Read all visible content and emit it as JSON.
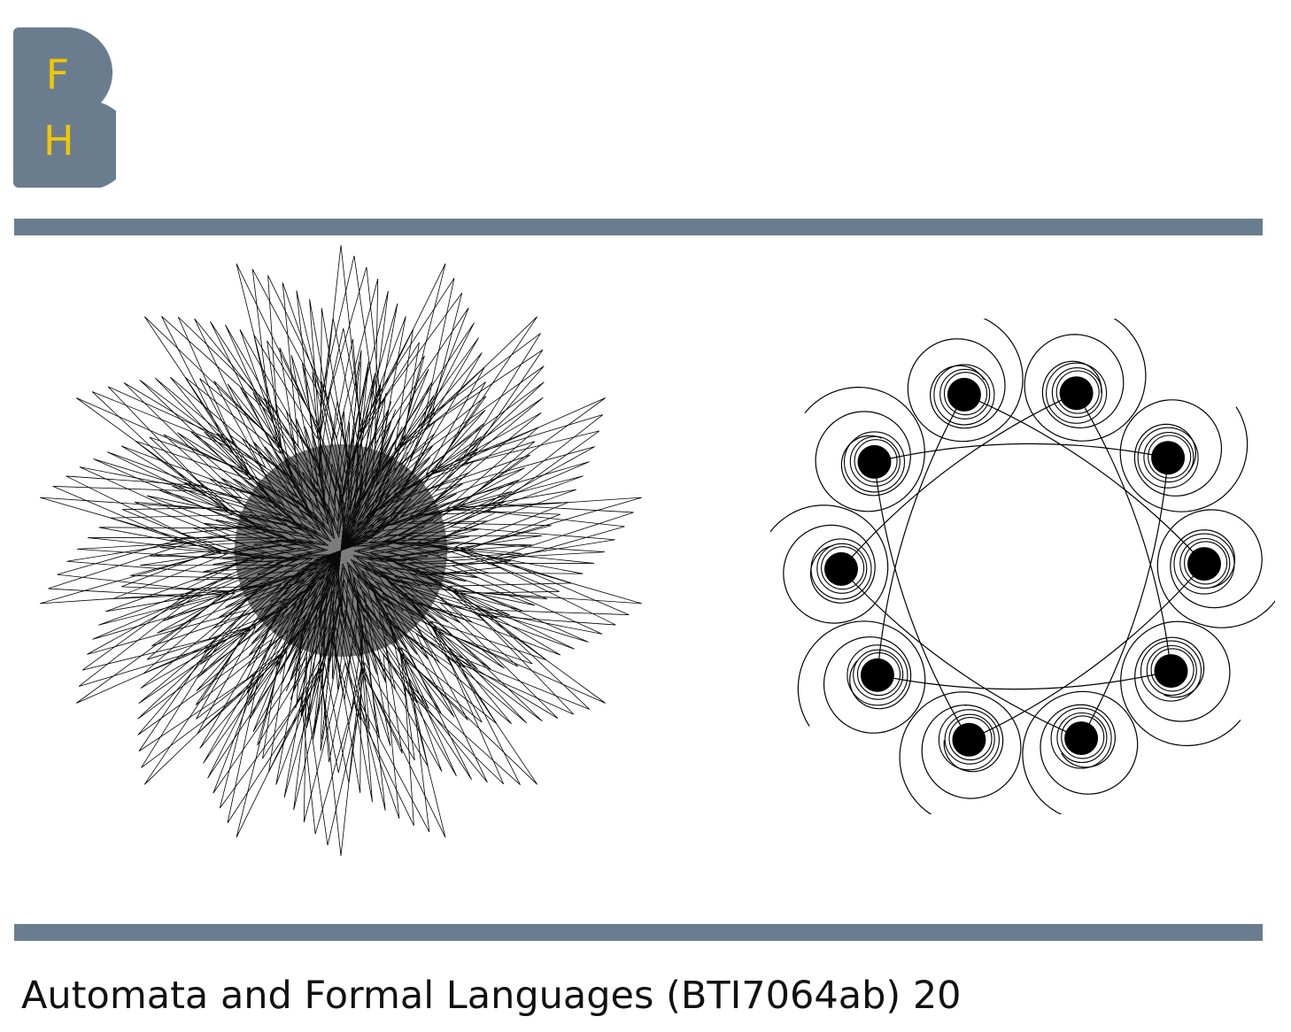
{
  "logo": {
    "letter_top": "F",
    "letter_bottom": "H",
    "background_color": "#6a7d8f",
    "letter_color": "#f2c500"
  },
  "rule_color": "#6a7d8f",
  "figures": {
    "star": {
      "icon": "turtle-star-pattern",
      "points": 18,
      "turns": 9,
      "layers": 26
    },
    "spiral": {
      "icon": "curlicue-spiral-pattern",
      "lobes": 10
    }
  },
  "footer": {
    "text": "Automata and Formal Languages (BTI7064ab) 20"
  }
}
